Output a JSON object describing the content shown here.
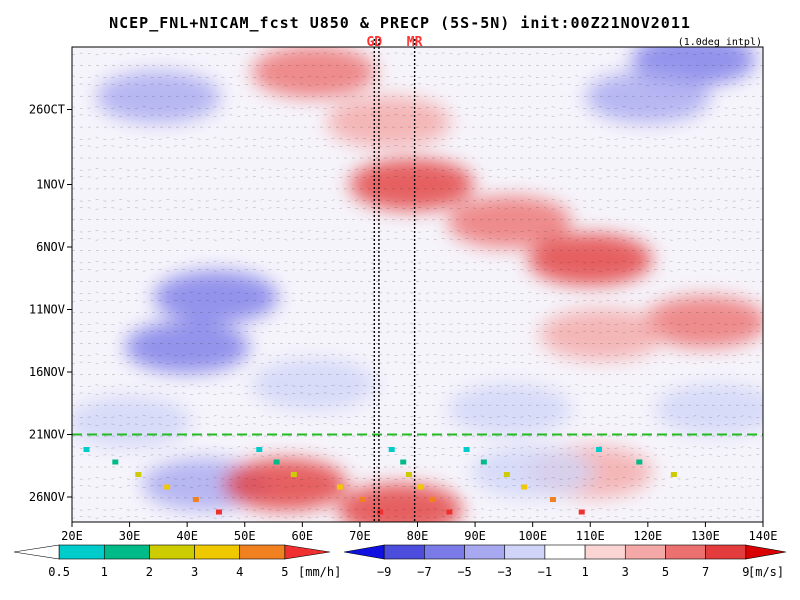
{
  "chart_data": {
    "type": "heatmap",
    "title": "NCEP_FNL+NICAM_fcst U850 & PRECP (5S-5N) init:00Z21NOV2011",
    "note": "(1.0deg intpl)",
    "xlim": [
      20,
      140
    ],
    "x_ticks": [
      {
        "value": 20,
        "label": "20E"
      },
      {
        "value": 30,
        "label": "30E"
      },
      {
        "value": 40,
        "label": "40E"
      },
      {
        "value": 50,
        "label": "50E"
      },
      {
        "value": 60,
        "label": "60E"
      },
      {
        "value": 70,
        "label": "70E"
      },
      {
        "value": 80,
        "label": "80E"
      },
      {
        "value": 90,
        "label": "90E"
      },
      {
        "value": 100,
        "label": "100E"
      },
      {
        "value": 110,
        "label": "110E"
      },
      {
        "value": 120,
        "label": "120E"
      },
      {
        "value": 130,
        "label": "130E"
      },
      {
        "value": 140,
        "label": "140E"
      }
    ],
    "ylim": [
      "2011-10-21",
      "2011-11-28"
    ],
    "y_ticks": [
      {
        "value": "2011-10-26",
        "label": "26OCT"
      },
      {
        "value": "2011-11-01",
        "label": "1NOV"
      },
      {
        "value": "2011-11-06",
        "label": "6NOV"
      },
      {
        "value": "2011-11-11",
        "label": "11NOV"
      },
      {
        "value": "2011-11-16",
        "label": "16NOV"
      },
      {
        "value": "2011-11-21",
        "label": "21NOV"
      },
      {
        "value": "2011-11-26",
        "label": "26NOV"
      }
    ],
    "forecast_init_line": {
      "date": "2011-11-21",
      "color": "#22bb22"
    },
    "vertical_lines": [
      {
        "lon": 72.5,
        "label": "GD",
        "color": "#ff3030"
      },
      {
        "lon": 73.3,
        "label": "",
        "color": "#ff3030"
      },
      {
        "lon": 79.5,
        "label": "MR",
        "color": "#ff3030"
      }
    ],
    "u850_colorbar": {
      "units": "[m/s]",
      "levels": [
        -9,
        -7,
        -5,
        -3,
        -1,
        1,
        3,
        5,
        7,
        9
      ],
      "labels": [
        "−9",
        "−7",
        "−5",
        "−3",
        "−1",
        "1",
        "3",
        "5",
        "7",
        "9"
      ],
      "colors": [
        "#1010e0",
        "#4d4ddd",
        "#7a7ae8",
        "#a8a8f0",
        "#d0d4f8",
        "#ffffff",
        "#fbd4d4",
        "#f4a8a8",
        "#ec7070",
        "#e23c3c",
        "#d80000"
      ]
    },
    "precip_colorbar": {
      "units": "[mm/h]",
      "levels": [
        0.5,
        1,
        2,
        3,
        4,
        5
      ],
      "labels": [
        "0.5",
        "1",
        "2",
        "3",
        "4",
        "5"
      ],
      "colors": [
        "#ffffff",
        "#00cccc",
        "#00bb88",
        "#cccc00",
        "#f0c800",
        "#f08020",
        "#ee3030"
      ]
    },
    "u850_anomalies": [
      {
        "lon": 35,
        "date": "2011-10-25",
        "u": -5
      },
      {
        "lon": 40,
        "date": "2011-11-14",
        "u": -7
      },
      {
        "lon": 45,
        "date": "2011-11-10",
        "u": -6
      },
      {
        "lon": 30,
        "date": "2011-11-20",
        "u": -3
      },
      {
        "lon": 43,
        "date": "2011-11-25",
        "u": -5
      },
      {
        "lon": 62,
        "date": "2011-11-17",
        "u": -2
      },
      {
        "lon": 62,
        "date": "2011-10-23",
        "u": 6
      },
      {
        "lon": 75,
        "date": "2011-10-27",
        "u": 4
      },
      {
        "lon": 79,
        "date": "2011-11-01",
        "u": 8
      },
      {
        "lon": 96,
        "date": "2011-11-04",
        "u": 6
      },
      {
        "lon": 110,
        "date": "2011-11-07",
        "u": 8
      },
      {
        "lon": 130,
        "date": "2011-11-12",
        "u": 5
      },
      {
        "lon": 112,
        "date": "2011-11-13",
        "u": 3
      },
      {
        "lon": 96,
        "date": "2011-11-19",
        "u": -2
      },
      {
        "lon": 128,
        "date": "2011-10-22",
        "u": -6
      },
      {
        "lon": 120,
        "date": "2011-10-25",
        "u": -5
      },
      {
        "lon": 57,
        "date": "2011-11-25",
        "u": 7
      },
      {
        "lon": 77,
        "date": "2011-11-27",
        "u": 8
      },
      {
        "lon": 110,
        "date": "2011-11-24",
        "u": 3
      },
      {
        "lon": 132,
        "date": "2011-11-19",
        "u": -2
      },
      {
        "lon": 100,
        "date": "2011-11-24",
        "u": -3
      }
    ]
  }
}
